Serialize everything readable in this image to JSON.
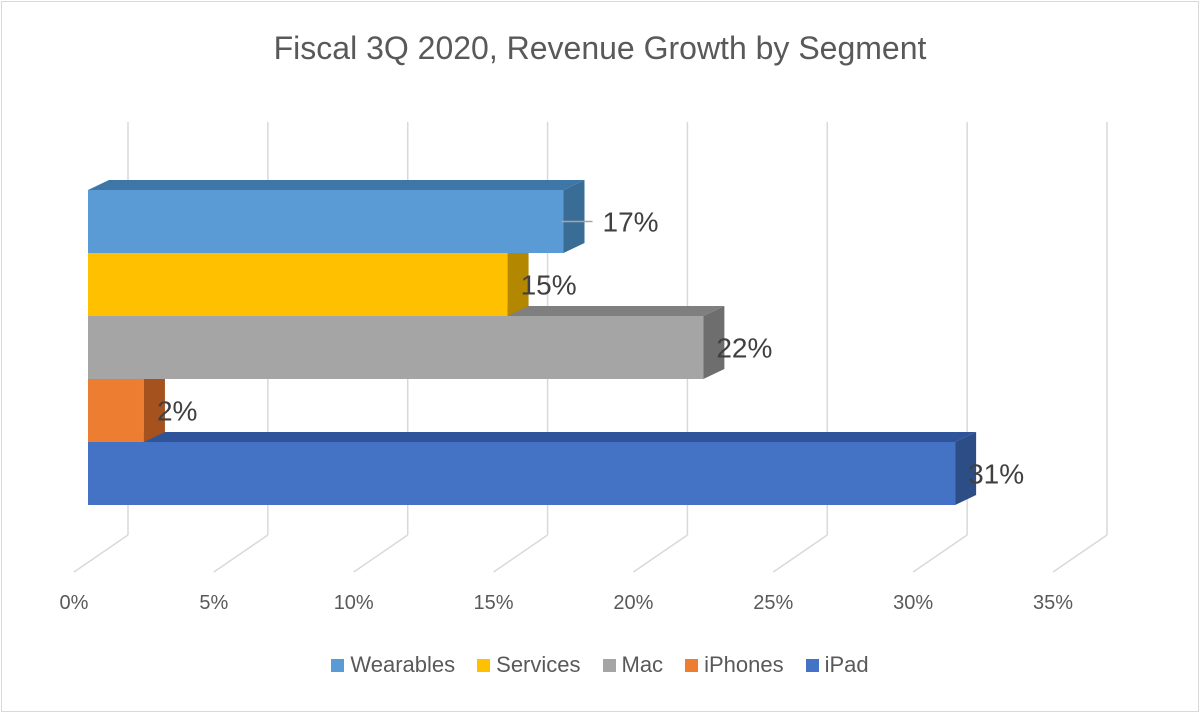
{
  "chart_data": {
    "type": "bar",
    "orientation": "horizontal",
    "style": "3d",
    "title": "Fiscal 3Q 2020, Revenue Growth by Segment",
    "xlabel": "",
    "ylabel": "",
    "xlim": [
      0,
      35
    ],
    "x_ticks": [
      "0%",
      "5%",
      "10%",
      "15%",
      "20%",
      "25%",
      "30%",
      "35%"
    ],
    "grid": true,
    "legend_position": "bottom",
    "series": [
      {
        "name": "Wearables",
        "value": 17,
        "label": "17%",
        "color": "#5b9bd5",
        "side_color": "#3a6d96",
        "top_color": "#3f76a8"
      },
      {
        "name": "Services",
        "value": 15,
        "label": "15%",
        "color": "#ffc000",
        "side_color": "#b38700",
        "top_color": "#c99700"
      },
      {
        "name": "Mac",
        "value": 22,
        "label": "22%",
        "color": "#a5a5a5",
        "side_color": "#6e6e6e",
        "top_color": "#7f7f7f"
      },
      {
        "name": "iPhones",
        "value": 2,
        "label": "2%",
        "color": "#ed7d31",
        "side_color": "#a5521f",
        "top_color": "#b85f26"
      },
      {
        "name": "iPad",
        "value": 31,
        "label": "31%",
        "color": "#4472c4",
        "side_color": "#2c4d86",
        "top_color": "#30549a"
      }
    ]
  }
}
